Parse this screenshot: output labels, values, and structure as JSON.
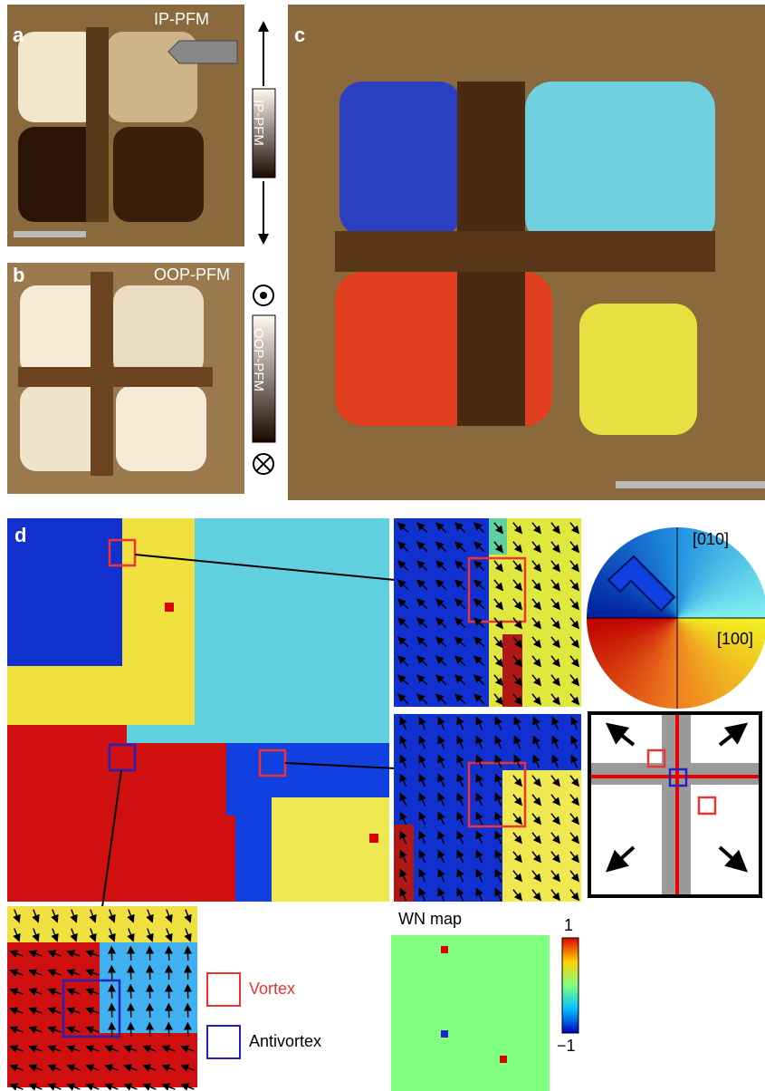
{
  "panels": {
    "a": {
      "letter": "a",
      "label": "IP-PFM",
      "colorbar": "IP-PFM"
    },
    "b": {
      "letter": "b",
      "label": "OOP-PFM",
      "colorbar": "OOP-PFM"
    },
    "c": {
      "letter": "c"
    },
    "d": {
      "letter": "d",
      "wheel_y": "[010]",
      "wheel_x": "[100]",
      "wn_title": "WN map",
      "wn_max": "1",
      "wn_min": "−1",
      "legend": [
        "Vortex",
        "Antivortex"
      ]
    }
  }
}
